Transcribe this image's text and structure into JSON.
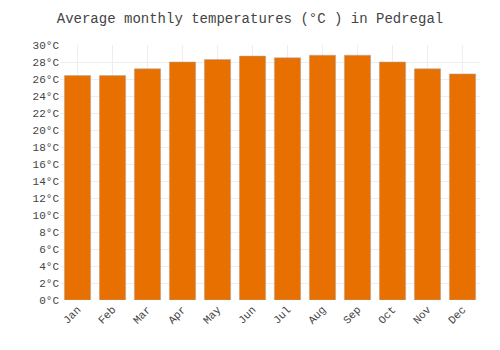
{
  "chart_data": {
    "type": "bar",
    "title": "Average monthly temperatures (°C ) in Pedregal",
    "categories": [
      "Jan",
      "Feb",
      "Mar",
      "Apr",
      "May",
      "Jun",
      "Jul",
      "Aug",
      "Sep",
      "Oct",
      "Nov",
      "Dec"
    ],
    "values": [
      26.4,
      26.4,
      27.2,
      28.0,
      28.3,
      28.7,
      28.5,
      28.8,
      28.8,
      28.0,
      27.2,
      26.6
    ],
    "color": "#E87000",
    "ylim": [
      0,
      30
    ],
    "yticks": [
      {
        "value": 0,
        "label": "0°C"
      },
      {
        "value": 2,
        "label": "2°C"
      },
      {
        "value": 4,
        "label": "4°C"
      },
      {
        "value": 6,
        "label": "6°C"
      },
      {
        "value": 8,
        "label": "8°C"
      },
      {
        "value": 10,
        "label": "10°C"
      },
      {
        "value": 12,
        "label": "12°C"
      },
      {
        "value": 14,
        "label": "14°C"
      },
      {
        "value": 16,
        "label": "16°C"
      },
      {
        "value": 18,
        "label": "18°C"
      },
      {
        "value": 20,
        "label": "20°C"
      },
      {
        "value": 22,
        "label": "22°C"
      },
      {
        "value": 24,
        "label": "24°C"
      },
      {
        "value": 26,
        "label": "26°C"
      },
      {
        "value": 28,
        "label": "28°C"
      },
      {
        "value": 30,
        "label": "30°C"
      }
    ],
    "grid": true
  }
}
